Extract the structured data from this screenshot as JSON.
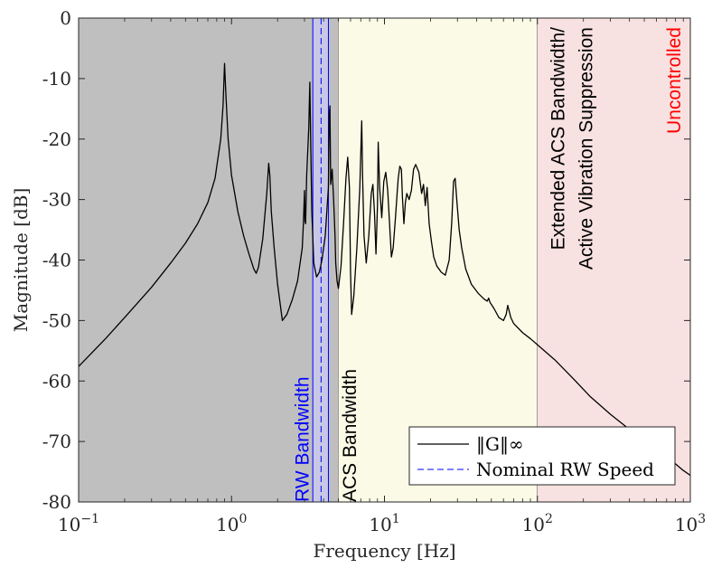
{
  "chart_data": {
    "type": "line",
    "xscale": "log",
    "xlim": [
      0.1,
      1000
    ],
    "ylim": [
      -80,
      0
    ],
    "xlabel": "Frequency [Hz]",
    "ylabel": "Magnitude [dB]",
    "x_tick_labels": [
      {
        "base": "10",
        "exp": "−1",
        "value": 0.1
      },
      {
        "base": "10",
        "exp": "0",
        "value": 1
      },
      {
        "base": "10",
        "exp": "1",
        "value": 10
      },
      {
        "base": "10",
        "exp": "2",
        "value": 100
      },
      {
        "base": "10",
        "exp": "3",
        "value": 1000
      }
    ],
    "y_tick_labels": [
      {
        "label": "0",
        "value": 0
      },
      {
        "label": "-10",
        "value": -10
      },
      {
        "label": "-20",
        "value": -20
      },
      {
        "label": "-30",
        "value": -30
      },
      {
        "label": "-40",
        "value": -40
      },
      {
        "label": "-50",
        "value": -50
      },
      {
        "label": "-60",
        "value": -60
      },
      {
        "label": "-70",
        "value": -70
      },
      {
        "label": "-80",
        "value": -80
      }
    ],
    "regions": [
      {
        "label": "",
        "x_from": 0.1,
        "x_to": 5,
        "color": "#bfbfbf"
      },
      {
        "label": "",
        "x_from": 5,
        "x_to": 100,
        "color": "#fafae6"
      },
      {
        "label": "",
        "x_from": 100,
        "x_to": 1000,
        "color": "#f8e1e1"
      }
    ],
    "region_labels": [
      {
        "lines": [
          "RW Bandwidth"
        ],
        "x": 3.2,
        "y": -80,
        "anchor": "start",
        "color": "#0000ff"
      },
      {
        "lines": [
          "ACS Bandwidth"
        ],
        "x": 6.5,
        "y": -80,
        "anchor": "start",
        "color": "#000000"
      },
      {
        "lines": [
          "Extended ACS Bandwidth/",
          "Active Vibration Suppression"
        ],
        "x": 150,
        "y": -1.5,
        "anchor": "end",
        "color": "#000000"
      },
      {
        "lines": [
          "Uncontrolled"
        ],
        "x": 860,
        "y": -1.5,
        "anchor": "end",
        "color": "#ff0000"
      }
    ],
    "rw_band": {
      "x_from": 3.4,
      "x_to": 4.3,
      "color": "#0000ff",
      "fill": "#c8c8e6"
    },
    "nominal_rw_speed_x": 3.85,
    "series": [
      {
        "name": "‖G‖∞",
        "color": "#000000",
        "style": "solid",
        "x": [
          0.1,
          0.15,
          0.2,
          0.3,
          0.4,
          0.5,
          0.6,
          0.7,
          0.78,
          0.85,
          0.88,
          0.9,
          0.92,
          0.95,
          1.0,
          1.1,
          1.2,
          1.3,
          1.4,
          1.45,
          1.5,
          1.6,
          1.7,
          1.75,
          1.78,
          1.82,
          1.9,
          2.0,
          2.15,
          2.3,
          2.5,
          2.7,
          2.9,
          2.95,
          3.0,
          3.02,
          3.05,
          3.1,
          3.2,
          3.25,
          3.3,
          3.35,
          3.45,
          3.6,
          3.75,
          3.9,
          4.1,
          4.3,
          4.35,
          4.4,
          4.45,
          4.55,
          4.65,
          4.75,
          4.8,
          4.9,
          5.0,
          5.2,
          5.4,
          5.6,
          5.75,
          5.9,
          6.0,
          6.1,
          6.3,
          6.6,
          6.9,
          7.1,
          7.2,
          7.35,
          7.6,
          7.9,
          8.2,
          8.4,
          8.6,
          8.8,
          9.0,
          9.1,
          9.3,
          9.6,
          9.9,
          10.2,
          10.5,
          10.8,
          11.1,
          11.4,
          11.8,
          12.1,
          12.3,
          12.6,
          12.9,
          13.1,
          13.4,
          13.7,
          14.0,
          14.5,
          15.0,
          15.5,
          16.0,
          16.8,
          17.5,
          18.0,
          18.5,
          19.0,
          19.6,
          20.3,
          21.0,
          22.0,
          23.5,
          25.0,
          26.5,
          27.5,
          28.3,
          29.0,
          29.8,
          30.8,
          32.0,
          34.0,
          37.0,
          41.0,
          45.0,
          47.0,
          48.0,
          49.0,
          52.0,
          56.0,
          60.0,
          62.5,
          64.0,
          65.5,
          67.0,
          70.0,
          80.0,
          90.0,
          100.0,
          130.0,
          170.0,
          220.0,
          300.0,
          400.0,
          500.0,
          600.0,
          700.0,
          800.0,
          900.0,
          1000.0
        ],
        "y": [
          -57.6,
          -53.0,
          -49.5,
          -44.5,
          -40.5,
          -37.2,
          -34.0,
          -30.5,
          -26.5,
          -20.0,
          -14.5,
          -7.5,
          -13.0,
          -20.0,
          -26.0,
          -32.0,
          -36.0,
          -39.0,
          -41.5,
          -42.2,
          -41.2,
          -36.5,
          -29.0,
          -24.0,
          -26.0,
          -32.0,
          -38.0,
          -44.0,
          -50.0,
          -49.0,
          -46.5,
          -43.5,
          -38.0,
          -34.0,
          -28.5,
          -33.5,
          -34.0,
          -26.0,
          -18.0,
          -10.6,
          -22.0,
          -32.0,
          -40.5,
          -42.8,
          -42.0,
          -40.0,
          -36.0,
          -28.0,
          -16.0,
          -14.5,
          -27.5,
          -25.0,
          -30.0,
          -36.0,
          -40.5,
          -43.5,
          -44.7,
          -41.0,
          -34.0,
          -26.5,
          -23.0,
          -28.0,
          -42.0,
          -49.0,
          -46.0,
          -38.0,
          -28.0,
          -17.0,
          -26.5,
          -36.0,
          -40.5,
          -36.0,
          -29.0,
          -27.5,
          -32.0,
          -39.0,
          -31.0,
          -20.5,
          -28.0,
          -33.0,
          -27.0,
          -25.5,
          -28.5,
          -34.0,
          -39.5,
          -38.0,
          -33.0,
          -29.0,
          -26.5,
          -24.5,
          -25.0,
          -29.5,
          -34.0,
          -30.5,
          -29.0,
          -30.0,
          -28.5,
          -25.0,
          -24.2,
          -25.5,
          -29.0,
          -27.5,
          -31.0,
          -28.0,
          -34.0,
          -37.0,
          -39.5,
          -41.0,
          -42.0,
          -42.5,
          -40.0,
          -34.0,
          -27.0,
          -26.5,
          -30.5,
          -35.0,
          -38.0,
          -41.5,
          -44.0,
          -45.5,
          -46.5,
          -46.8,
          -46.3,
          -47.0,
          -48.0,
          -49.5,
          -50.0,
          -49.0,
          -47.5,
          -48.5,
          -49.5,
          -50.5,
          -52.0,
          -53.0,
          -54.0,
          -56.5,
          -59.5,
          -62.5,
          -65.5,
          -68.0,
          -70.0,
          -71.5,
          -72.6,
          -73.7,
          -74.8,
          -75.6
        ]
      },
      {
        "name": "Nominal RW Speed",
        "color": "#0000ff",
        "style": "dashed"
      }
    ],
    "legend": {
      "position": "bottom-right",
      "entries": [
        "‖G‖∞",
        "Nominal RW Speed"
      ]
    },
    "grid": false
  }
}
